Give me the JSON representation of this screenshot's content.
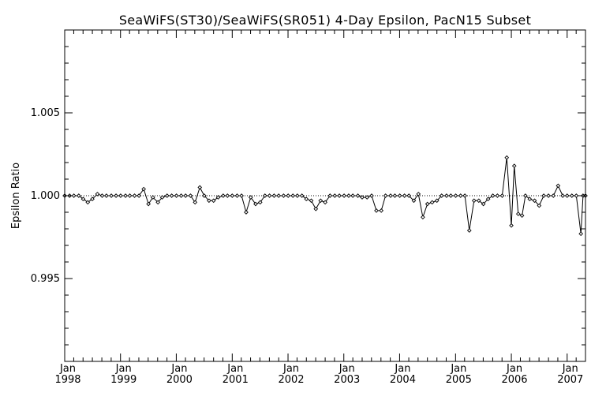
{
  "chart_data": {
    "type": "line",
    "title": "SeaWiFS(ST30)/SeaWiFS(SR051) 4-Day Epsilon, PacN15 Subset",
    "xlabel": "",
    "ylabel": "Epsilon Ratio",
    "xlim": [
      "1998-01-01",
      "2007-05-01"
    ],
    "ylim": [
      0.99,
      1.01
    ],
    "yticks": [
      {
        "value": 1.005,
        "label": "1.005"
      },
      {
        "value": 1.0,
        "label": "1.000"
      },
      {
        "value": 0.995,
        "label": "0.995"
      }
    ],
    "xticks": [
      {
        "date": "1998-01-01",
        "month": "Jan",
        "year": "1998"
      },
      {
        "date": "1999-01-01",
        "month": "Jan",
        "year": "1999"
      },
      {
        "date": "2000-01-01",
        "month": "Jan",
        "year": "2000"
      },
      {
        "date": "2001-01-01",
        "month": "Jan",
        "year": "2001"
      },
      {
        "date": "2002-01-01",
        "month": "Jan",
        "year": "2002"
      },
      {
        "date": "2003-01-01",
        "month": "Jan",
        "year": "2003"
      },
      {
        "date": "2004-01-01",
        "month": "Jan",
        "year": "2004"
      },
      {
        "date": "2005-01-01",
        "month": "Jan",
        "year": "2005"
      },
      {
        "date": "2006-01-01",
        "month": "Jan",
        "year": "2006"
      },
      {
        "date": "2007-01-01",
        "month": "Jan",
        "year": "2007"
      }
    ],
    "reference_line": {
      "y": 1.0,
      "style": "dotted"
    },
    "series": [
      {
        "marker": "diamond",
        "color": "#000000",
        "x": [
          "1998-01-01",
          "1998-02-02",
          "1998-03-02",
          "1998-04-03",
          "1998-05-02",
          "1998-06-01",
          "1998-07-01",
          "1998-08-03",
          "1998-09-03",
          "1998-10-01",
          "1998-11-02",
          "1998-12-03",
          "1999-01-02",
          "1999-02-03",
          "1999-03-03",
          "1999-04-03",
          "1999-05-02",
          "1999-06-02",
          "1999-07-03",
          "1999-08-01",
          "1999-09-03",
          "1999-10-01",
          "1999-11-02",
          "1999-12-02",
          "2000-01-02",
          "2000-02-02",
          "2000-03-02",
          "2000-04-03",
          "2000-05-03",
          "2000-06-03",
          "2000-07-02",
          "2000-08-02",
          "2000-09-01",
          "2000-10-01",
          "2000-11-03",
          "2000-12-01",
          "2001-01-01",
          "2001-02-02",
          "2001-03-03",
          "2001-04-02",
          "2001-05-02",
          "2001-06-03",
          "2001-07-03",
          "2001-08-03",
          "2001-09-02",
          "2001-10-02",
          "2001-11-01",
          "2001-12-03",
          "2002-01-02",
          "2002-02-02",
          "2002-03-03",
          "2002-04-02",
          "2002-05-01",
          "2002-06-02",
          "2002-07-02",
          "2002-08-02",
          "2002-09-01",
          "2002-10-03",
          "2002-11-03",
          "2002-12-03",
          "2003-01-03",
          "2003-02-02",
          "2003-03-01",
          "2003-04-03",
          "2003-05-01",
          "2003-06-02",
          "2003-07-02",
          "2003-08-02",
          "2003-09-03",
          "2003-10-01",
          "2003-11-03",
          "2003-12-01",
          "2004-01-02",
          "2004-02-02",
          "2004-03-02",
          "2004-04-03",
          "2004-05-03",
          "2004-06-01",
          "2004-07-01",
          "2004-08-01",
          "2004-09-01",
          "2004-10-02",
          "2004-11-03",
          "2004-12-01",
          "2005-01-02",
          "2005-02-03",
          "2005-03-03",
          "2005-04-01",
          "2005-05-02",
          "2005-06-02",
          "2005-07-02",
          "2005-08-02",
          "2005-09-02",
          "2005-10-02",
          "2005-11-02",
          "2005-12-02",
          "2006-01-01",
          "2006-01-20",
          "2006-02-15",
          "2006-03-12",
          "2006-04-03",
          "2006-05-01",
          "2006-06-02",
          "2006-07-02",
          "2006-08-01",
          "2006-09-01",
          "2006-10-03",
          "2006-11-03",
          "2006-12-03",
          "2007-01-01",
          "2007-02-01",
          "2007-03-02",
          "2007-04-01",
          "2007-04-15",
          "2007-05-01"
        ],
        "y": [
          1.0,
          1.0,
          1.0,
          1.0,
          0.9998,
          0.9996,
          0.9998,
          1.0001,
          1.0,
          1.0,
          1.0,
          1.0,
          1.0,
          1.0,
          1.0,
          1.0,
          1.0,
          1.0004,
          0.9995,
          0.9999,
          0.9996,
          0.9999,
          1.0,
          1.0,
          1.0,
          1.0,
          1.0,
          1.0,
          0.9996,
          1.0005,
          1.0,
          0.9997,
          0.9997,
          0.9999,
          1.0,
          1.0,
          1.0,
          1.0,
          1.0,
          0.999,
          0.9999,
          0.9995,
          0.9996,
          1.0,
          1.0,
          1.0,
          1.0,
          1.0,
          1.0,
          1.0,
          1.0,
          1.0,
          0.9998,
          0.9997,
          0.9992,
          0.9997,
          0.9996,
          1.0,
          1.0,
          1.0,
          1.0,
          1.0,
          1.0,
          1.0,
          0.9999,
          0.9999,
          1.0,
          0.9991,
          0.9991,
          1.0,
          1.0,
          1.0,
          1.0,
          1.0,
          1.0,
          0.9997,
          1.0001,
          0.9987,
          0.9995,
          0.9996,
          0.9997,
          1.0,
          1.0,
          1.0,
          1.0,
          1.0,
          1.0,
          0.9979,
          0.9997,
          0.9997,
          0.9995,
          0.9998,
          1.0,
          1.0,
          1.0,
          1.0023,
          0.9982,
          1.0018,
          0.9989,
          0.9988,
          1.0,
          0.9998,
          0.9997,
          0.9994,
          1.0,
          1.0,
          1.0,
          1.0006,
          1.0,
          1.0,
          1.0,
          1.0,
          0.9977,
          1.0,
          1.0
        ]
      }
    ]
  }
}
